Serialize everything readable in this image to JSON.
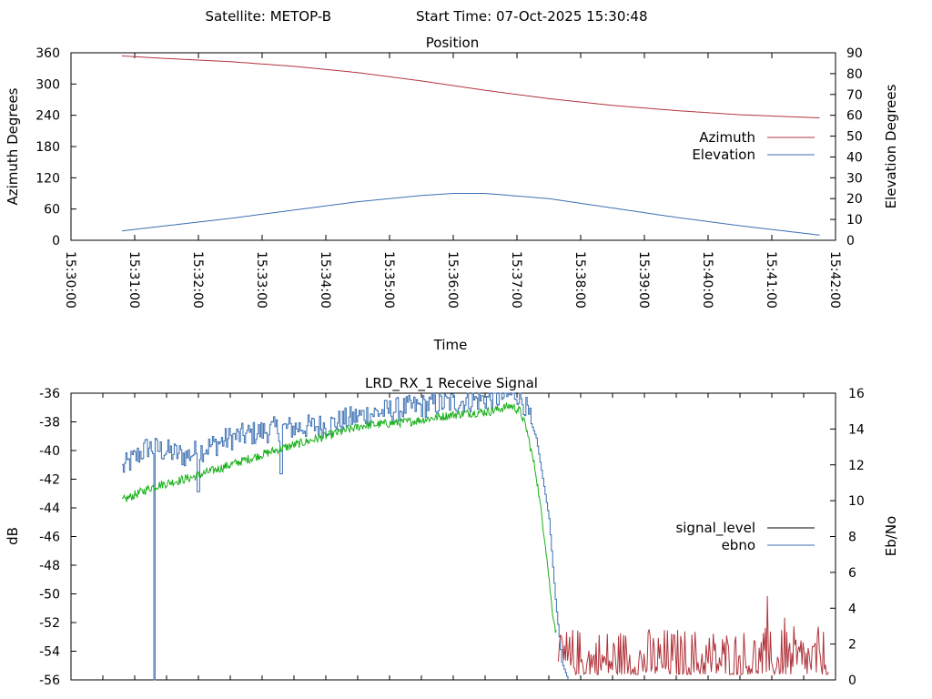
{
  "header": {
    "satellite_text": "Satellite: METOP-B",
    "start_time_text": "Start Time: 07-Oct-2025 15:30:48"
  },
  "colors": {
    "azimuth": "#b0343c",
    "elevation": "#3a6fb0",
    "signal_level": "#000000",
    "ebno": "#3a6fb0",
    "green_trace": "#1ab01a",
    "red_trace": "#b0343c"
  },
  "chart_data": [
    {
      "type": "line",
      "title": "Position",
      "xlabel": "Time",
      "ylabel": "Azimuth Degrees",
      "y2label": "Elevation Degrees",
      "ylim": [
        0,
        360
      ],
      "y2lim": [
        0,
        90
      ],
      "yticks": [
        "0",
        "60",
        "120",
        "180",
        "240",
        "300",
        "360"
      ],
      "y2ticks": [
        "0",
        "10",
        "20",
        "30",
        "40",
        "50",
        "60",
        "70",
        "80",
        "90"
      ],
      "xticks": [
        "15:30:00",
        "15:31:00",
        "15:32:00",
        "15:33:00",
        "15:34:00",
        "15:35:00",
        "15:36:00",
        "15:37:00",
        "15:38:00",
        "15:39:00",
        "15:40:00",
        "15:41:00",
        "15:42:00"
      ],
      "xlim_minutes": [
        0,
        12
      ],
      "grid": false,
      "legend": "right",
      "series": [
        {
          "name": "Azimuth",
          "axis": "y",
          "x_minutes": [
            0.8,
            1.5,
            2.5,
            3.5,
            4.5,
            5.5,
            6.5,
            7.5,
            8.5,
            9.5,
            10.5,
            11.75
          ],
          "values": [
            354,
            349,
            343,
            334,
            322,
            306,
            288,
            272,
            259,
            249,
            241,
            235
          ]
        },
        {
          "name": "Elevation",
          "axis": "y2",
          "x_minutes": [
            0.8,
            1.5,
            2.5,
            3.5,
            4.5,
            5.5,
            6.0,
            6.5,
            7.5,
            8.5,
            9.5,
            10.5,
            11.75
          ],
          "values": [
            4.5,
            7,
            10.5,
            14.5,
            18.5,
            21.5,
            22.5,
            22.5,
            20,
            15.5,
            11,
            7,
            2.5
          ]
        }
      ]
    },
    {
      "type": "line",
      "title": "LRD_RX_1 Receive Signal",
      "ylabel": "dB",
      "y2label": "Eb/No",
      "ylim": [
        -56,
        -36
      ],
      "y2lim": [
        0,
        16
      ],
      "yticks": [
        "-56",
        "-54",
        "-52",
        "-50",
        "-48",
        "-46",
        "-44",
        "-42",
        "-40",
        "-38",
        "-36"
      ],
      "y2ticks": [
        "0",
        "2",
        "4",
        "6",
        "8",
        "10",
        "12",
        "14",
        "16"
      ],
      "xlim_minutes": [
        0,
        12
      ],
      "grid": false,
      "legend": "right",
      "series": [
        {
          "name": "signal_level",
          "axis": "y",
          "x_minutes": [
            0.8,
            1.2,
            1.8,
            2.5,
            3.2,
            4.0,
            4.6,
            5.3,
            6.0,
            6.8,
            7.0,
            7.1,
            7.3,
            7.5,
            7.6,
            7.7,
            7.8
          ],
          "values": [
            -41.3,
            -39.8,
            -40.3,
            -39.2,
            -39.0,
            -38.3,
            -37.8,
            -37.5,
            -37.0,
            -36.5,
            -36.3,
            -36.8,
            -39.0,
            -44.0,
            -50.0,
            -54.5,
            -56.0
          ]
        },
        {
          "name": "ebno",
          "axis": "y2",
          "x_minutes": [
            0.8,
            1.2,
            1.8,
            2.5,
            3.2,
            4.0,
            4.6,
            5.3,
            6.0,
            6.8,
            7.0,
            7.1,
            7.3,
            7.5,
            7.6,
            7.7,
            7.8
          ],
          "values": [
            11.8,
            13.0,
            12.5,
            13.5,
            14.0,
            14.2,
            14.8,
            15.2,
            15.5,
            15.8,
            16.0,
            15.5,
            13.5,
            9.0,
            4.5,
            1.0,
            0
          ]
        },
        {
          "axis": "y2",
          "x_minutes": [
            0.8,
            1.3,
            1.9,
            2.5,
            3.2,
            4.0,
            4.6,
            5.3,
            6.0,
            6.6,
            6.9,
            7.05,
            7.15,
            7.3,
            7.45,
            7.55,
            7.62
          ],
          "values": [
            10.0,
            10.8,
            11.3,
            12.0,
            12.8,
            13.6,
            14.2,
            14.4,
            14.8,
            15.0,
            15.3,
            15.0,
            14.0,
            11.5,
            7.5,
            4.0,
            2.5
          ]
        },
        {
          "axis": "y2",
          "x_minutes": [
            7.65,
            12.0
          ],
          "values": [
            0.3,
            5.2
          ]
        }
      ]
    }
  ]
}
